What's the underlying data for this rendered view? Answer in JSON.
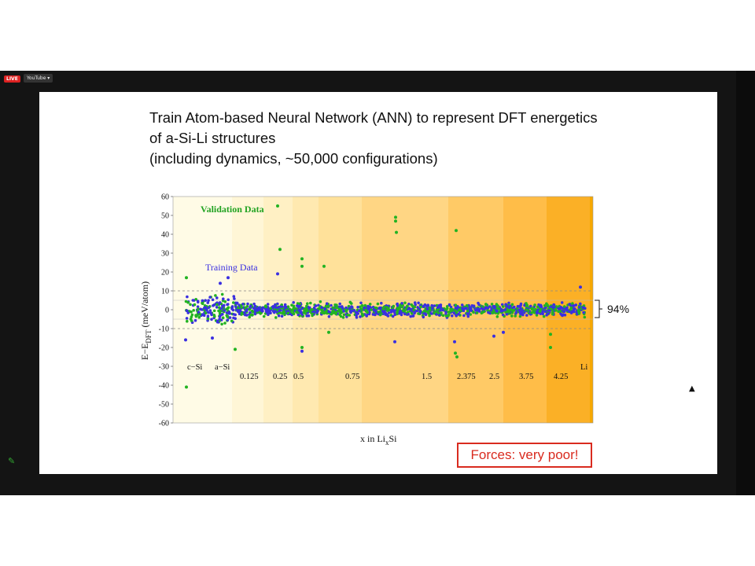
{
  "viewer": {
    "live_badge": "LIVE",
    "source_button": "YouTube ▾"
  },
  "slide": {
    "title_lines": [
      "Train Atom-based Neural Network (ANN) to represent DFT energetics",
      "of a-Si-Li structures",
      "(including dynamics, ~50,000 configurations)"
    ],
    "note": "Forces: very poor!",
    "bracket_label": "94%"
  },
  "chart_data": {
    "type": "scatter",
    "ylabel_main": "E−E",
    "ylabel_sub": "DFT",
    "ylabel_unit": " (meV/atom)",
    "xlabel_main": "x in Li",
    "xlabel_sub": "x",
    "xlabel_end": "Si",
    "ylim": [
      -60,
      60
    ],
    "yticks": [
      60,
      50,
      40,
      30,
      20,
      10,
      0,
      -10,
      -20,
      -30,
      -40,
      -50,
      -60
    ],
    "dashed_lines": [
      10,
      -10
    ],
    "composition_labels": [
      "c−Si",
      "a−Si",
      "0.125",
      "0.25",
      "0.5",
      "0.75",
      "1.5",
      "2.375",
      "2.5",
      "3.75",
      "4.25",
      "Li"
    ],
    "series": [
      {
        "name": "Training Data",
        "color": "#3a2fe0"
      },
      {
        "name": "Validation Data",
        "color": "#22b322"
      }
    ],
    "colors": {
      "band_light": "#fff8dc",
      "band_dark": "#f7a800"
    }
  }
}
